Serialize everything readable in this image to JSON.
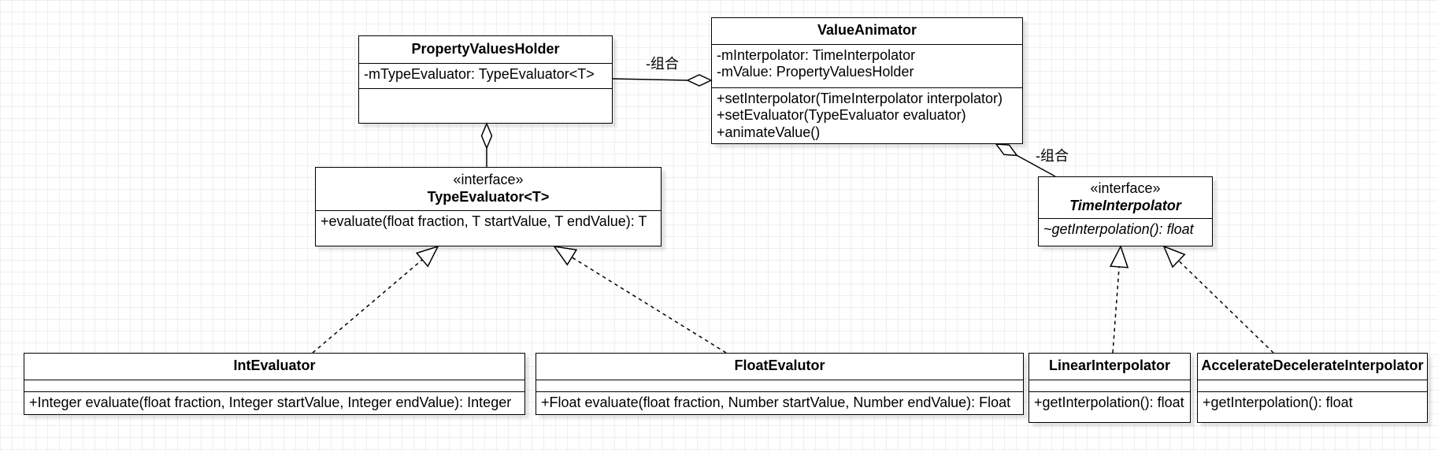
{
  "diagram": {
    "classes": {
      "property_values_holder": {
        "name": "PropertyValuesHolder",
        "attributes": [
          "-mTypeEvaluator: TypeEvaluator<T>"
        ],
        "methods": []
      },
      "value_animator": {
        "name": "ValueAnimator",
        "attributes": [
          "-mInterpolator: TimeInterpolator",
          "-mValue: PropertyValuesHolder"
        ],
        "methods": [
          "+setInterpolator(TimeInterpolator interpolator)",
          "+setEvaluator(TypeEvaluator evaluator)",
          "+animateValue()"
        ]
      },
      "type_evaluator": {
        "stereotype": "«interface»",
        "name": "TypeEvaluator<T>",
        "methods": [
          "+evaluate(float fraction, T startValue, T endValue): T"
        ]
      },
      "time_interpolator": {
        "stereotype": "«interface»",
        "name": "TimeInterpolator",
        "methods": [
          "~getInterpolation(): float"
        ]
      },
      "int_evaluator": {
        "name": "IntEvaluator",
        "attributes": [],
        "methods": [
          "+Integer evaluate(float fraction, Integer startValue, Integer endValue): Integer"
        ]
      },
      "float_evalutor": {
        "name": "FloatEvalutor",
        "attributes": [],
        "methods": [
          "+Float evaluate(float fraction, Number startValue, Number endValue): Float"
        ]
      },
      "linear_interpolator": {
        "name": "LinearInterpolator",
        "attributes": [],
        "methods": [
          "+getInterpolation(): float"
        ]
      },
      "accelerate_decelerate_interpolator": {
        "name": "AccelerateDecelerateInterpolator",
        "attributes": [],
        "methods": [
          "+getInterpolation(): float"
        ]
      }
    },
    "relations": {
      "holder_in_animator": {
        "label": "-组合"
      },
      "interpolator_in_animator": {
        "label": "-组合"
      }
    }
  },
  "colors": {
    "stroke": "#000000",
    "fill": "#ffffff",
    "canvas": "#ffffff",
    "grid": "#efefef"
  }
}
